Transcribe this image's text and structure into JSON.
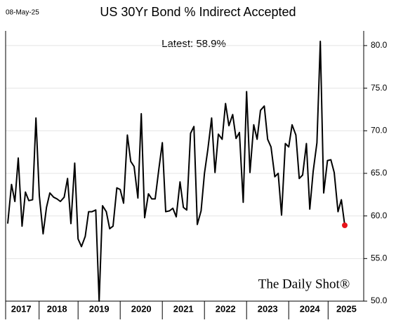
{
  "chart_data": {
    "type": "line",
    "title": "US 30Yr Bond % Indirect Accepted",
    "date": "08-May-25",
    "annotation": "Latest:  58.9%",
    "watermark": "The Daily Shot®",
    "color": "#000000",
    "latest_color": "#e8141b",
    "grid": true,
    "x": [
      2017.33,
      2017.42,
      2017.5,
      2017.58,
      2017.67,
      2017.75,
      2017.83,
      2017.92,
      2018.0,
      2018.08,
      2018.17,
      2018.25,
      2018.33,
      2018.42,
      2018.5,
      2018.58,
      2018.67,
      2018.75,
      2018.83,
      2018.92,
      2019.0,
      2019.08,
      2019.17,
      2019.25,
      2019.33,
      2019.42,
      2019.5,
      2019.58,
      2019.67,
      2019.75,
      2019.83,
      2019.92,
      2020.0,
      2020.08,
      2020.17,
      2020.25,
      2020.33,
      2020.42,
      2020.5,
      2020.58,
      2020.67,
      2020.75,
      2020.83,
      2020.92,
      2021.0,
      2021.08,
      2021.17,
      2021.25,
      2021.33,
      2021.42,
      2021.5,
      2021.58,
      2021.67,
      2021.75,
      2021.83,
      2021.92,
      2022.0,
      2022.08,
      2022.17,
      2022.25,
      2022.33,
      2022.42,
      2022.5,
      2022.58,
      2022.67,
      2022.75,
      2022.83,
      2022.92,
      2023.0,
      2023.08,
      2023.17,
      2023.25,
      2023.33,
      2023.42,
      2023.5,
      2023.58,
      2023.67,
      2023.75,
      2023.83,
      2023.92,
      2024.0,
      2024.08,
      2024.17,
      2024.25,
      2024.33,
      2024.42,
      2024.5,
      2024.58,
      2024.67,
      2024.75,
      2024.83,
      2024.92,
      2025.0,
      2025.08,
      2025.17,
      2025.25,
      2025.33
    ],
    "values": [
      59.1,
      63.7,
      61.7,
      66.8,
      58.8,
      62.8,
      61.8,
      61.9,
      71.5,
      62.4,
      57.9,
      61.0,
      62.7,
      62.2,
      62.0,
      61.7,
      62.2,
      64.4,
      59.1,
      66.2,
      57.3,
      56.4,
      57.6,
      60.5,
      60.5,
      60.7,
      50.0,
      61.2,
      60.5,
      58.5,
      58.8,
      63.3,
      63.1,
      61.5,
      69.5,
      66.4,
      65.8,
      62.1,
      72.0,
      59.8,
      62.6,
      62.0,
      62.0,
      65.6,
      68.6,
      60.5,
      60.6,
      60.9,
      59.9,
      64.0,
      61.0,
      60.7,
      69.7,
      70.5,
      59.0,
      60.6,
      65.0,
      67.8,
      71.5,
      65.1,
      69.6,
      69.0,
      73.2,
      70.6,
      71.9,
      69.1,
      69.8,
      61.6,
      74.6,
      65.1,
      70.7,
      69.0,
      72.4,
      72.9,
      69.0,
      68.1,
      64.6,
      65.0,
      60.1,
      68.5,
      68.1,
      70.7,
      69.5,
      64.4,
      64.8,
      68.5,
      60.8,
      65.2,
      68.6,
      80.5,
      62.7,
      66.5,
      66.6,
      65.1,
      60.5,
      61.9,
      58.9
    ],
    "xlim": [
      2017.28,
      2025.78
    ],
    "xticks": [
      {
        "value": 2017.65,
        "label": "2017"
      },
      {
        "value": 2018.5,
        "label": "2018"
      },
      {
        "value": 2019.5,
        "label": "2019"
      },
      {
        "value": 2020.5,
        "label": "2020"
      },
      {
        "value": 2021.5,
        "label": "2021"
      },
      {
        "value": 2022.5,
        "label": "2022"
      },
      {
        "value": 2023.5,
        "label": "2023"
      },
      {
        "value": 2024.5,
        "label": "2024"
      },
      {
        "value": 2025.37,
        "label": "2025"
      }
    ],
    "ylim": [
      50,
      80.9
    ],
    "yticks": [
      {
        "value": 50,
        "label": "50.0"
      },
      {
        "value": 55,
        "label": "55.0"
      },
      {
        "value": 60,
        "label": "60.0"
      },
      {
        "value": 65,
        "label": "65.0"
      },
      {
        "value": 70,
        "label": "70.0"
      },
      {
        "value": 75,
        "label": "75.0"
      },
      {
        "value": 80,
        "label": "80.0"
      }
    ]
  }
}
